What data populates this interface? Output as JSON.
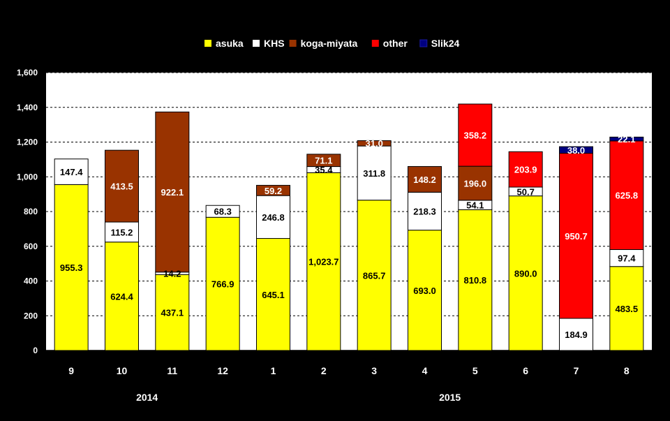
{
  "chart_data": {
    "type": "bar",
    "stacked": true,
    "categories": [
      "9",
      "10",
      "11",
      "12",
      "1",
      "2",
      "3",
      "4",
      "5",
      "6",
      "7",
      "8"
    ],
    "year_groups": [
      {
        "label": "2014",
        "from_index": 0,
        "to_index": 3
      },
      {
        "label": "2015",
        "from_index": 4,
        "to_index": 11
      }
    ],
    "series": [
      {
        "name": "asuka",
        "color": "#FFFF00",
        "values": [
          955.3,
          624.4,
          437.1,
          766.9,
          645.1,
          1023.7,
          865.7,
          693.0,
          810.8,
          890.0,
          null,
          483.5
        ]
      },
      {
        "name": "KHS",
        "color": "#FFFFFF",
        "values": [
          147.4,
          115.2,
          14.2,
          68.3,
          246.8,
          35.4,
          311.8,
          218.3,
          54.1,
          50.7,
          184.9,
          97.4
        ]
      },
      {
        "name": "koga-miyata",
        "color": "#993300",
        "values": [
          null,
          413.5,
          922.1,
          null,
          59.2,
          71.1,
          31.0,
          148.2,
          196.0,
          null,
          null,
          null
        ]
      },
      {
        "name": "other",
        "color": "#FF0000",
        "values": [
          null,
          null,
          null,
          null,
          null,
          null,
          null,
          null,
          358.2,
          203.9,
          950.7,
          625.8
        ]
      },
      {
        "name": "Slik24",
        "color": "#000080",
        "values": [
          null,
          null,
          null,
          null,
          null,
          null,
          null,
          null,
          null,
          null,
          38.0,
          22.1
        ]
      }
    ],
    "data_labels": [
      [
        "955.3",
        "147.4",
        null,
        null,
        null
      ],
      [
        "624.4",
        "115.2",
        "413.5",
        null,
        null
      ],
      [
        "437.1",
        "14.2",
        "922.1",
        null,
        null
      ],
      [
        "766.9",
        "68.3",
        null,
        null,
        null
      ],
      [
        "645.1",
        "246.8",
        "59.2",
        null,
        null
      ],
      [
        "1,023.7",
        "35.4",
        "71.1",
        null,
        null
      ],
      [
        "865.7",
        "311.8",
        "31.0",
        null,
        null
      ],
      [
        "693.0",
        "218.3",
        "148.2",
        null,
        null
      ],
      [
        "810.8",
        "54.1",
        "196.0",
        "358.2",
        null
      ],
      [
        "890.0",
        "50.7",
        null,
        "203.9",
        null
      ],
      [
        null,
        "184.9",
        null,
        "950.7",
        "38.0"
      ],
      [
        "483.5",
        "97.4",
        null,
        "625.8",
        "22.1"
      ]
    ],
    "y_ticks": [
      "0",
      "200",
      "400",
      "600",
      "800",
      "1,000",
      "1,200",
      "1,400",
      "1,600"
    ],
    "ylim": [
      0,
      1600
    ],
    "grid": true,
    "legend_position": "top-center",
    "plot_background": "#FFFFFF",
    "page_background": "#000000",
    "label_color": "#FFFFFF",
    "data_label_color_dark": "#000000",
    "data_label_color_light": "#FFFFFF"
  }
}
